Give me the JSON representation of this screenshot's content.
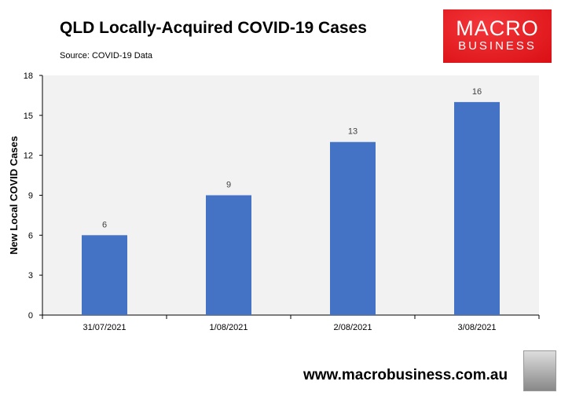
{
  "chart_data": {
    "type": "bar",
    "title": "QLD Locally-Acquired COVID-19 Cases",
    "subtitle": "Source: COVID-19 Data",
    "xlabel": "",
    "ylabel": "New Local COVID Cases",
    "categories": [
      "31/07/2021",
      "1/08/2021",
      "2/08/2021",
      "3/08/2021"
    ],
    "values": [
      6,
      9,
      13,
      16
    ],
    "ylim": [
      0,
      18
    ],
    "yticks": [
      0,
      3,
      6,
      9,
      12,
      15,
      18
    ],
    "grid": false,
    "bar_color": "#4472C4",
    "plot_background": "#F2F2F2"
  },
  "logo": {
    "line1": "MACRO",
    "line2": "BUSINESS"
  },
  "footer": {
    "url": "www.macrobusiness.com.au"
  }
}
